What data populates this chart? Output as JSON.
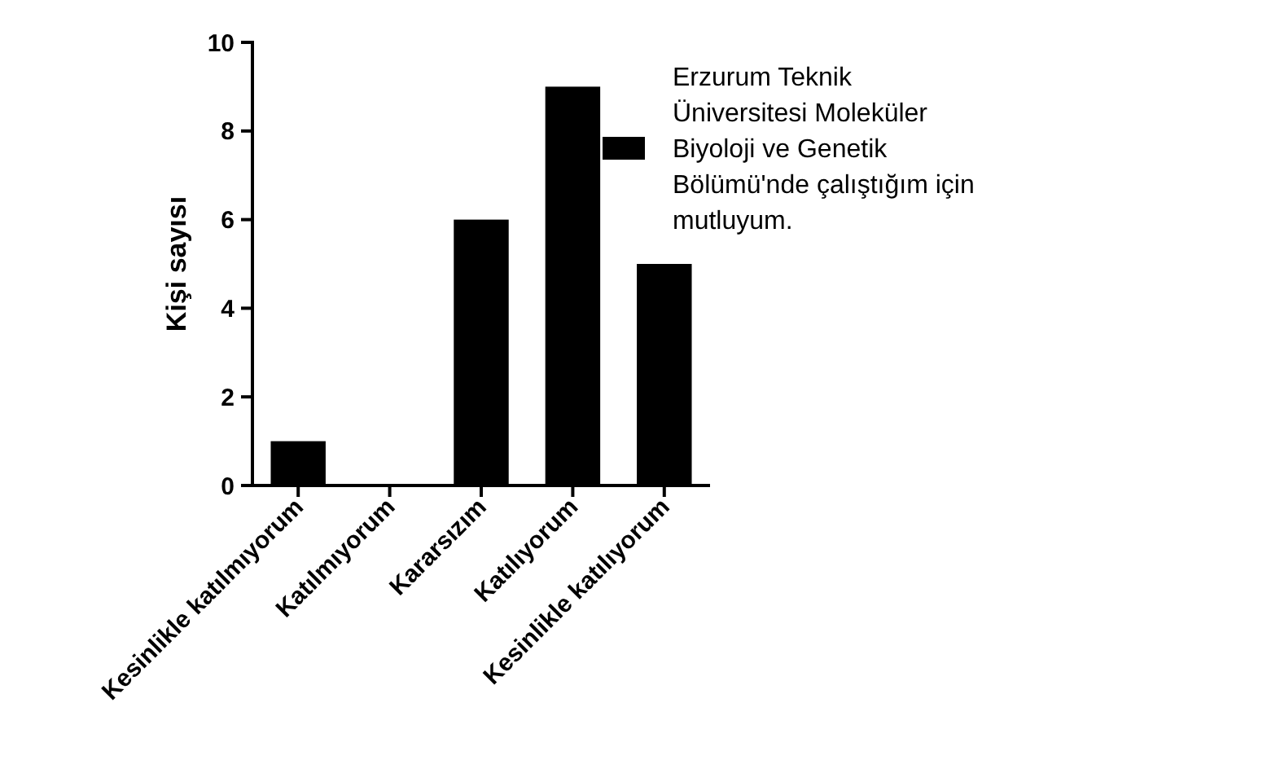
{
  "chart_data": {
    "type": "bar",
    "ylabel": "Kişi sayısı",
    "categories": [
      "Kesinlikle katılmıyorum",
      "Katılmıyorum",
      "Kararsızım",
      "Katılıyorum",
      "Kesinlikle katılıyorum"
    ],
    "series": [
      {
        "name": "Erzurum Teknik Üniversitesi Moleküler Biyoloji ve Genetik Bölümü'nde çalıştığım için mutluyum.",
        "color": "#000000",
        "values": [
          1,
          0,
          6,
          9,
          5
        ]
      }
    ],
    "ylim": [
      0,
      10
    ],
    "yticks": [
      0,
      2,
      4,
      6,
      8,
      10
    ],
    "grid": false,
    "legend": "right"
  }
}
